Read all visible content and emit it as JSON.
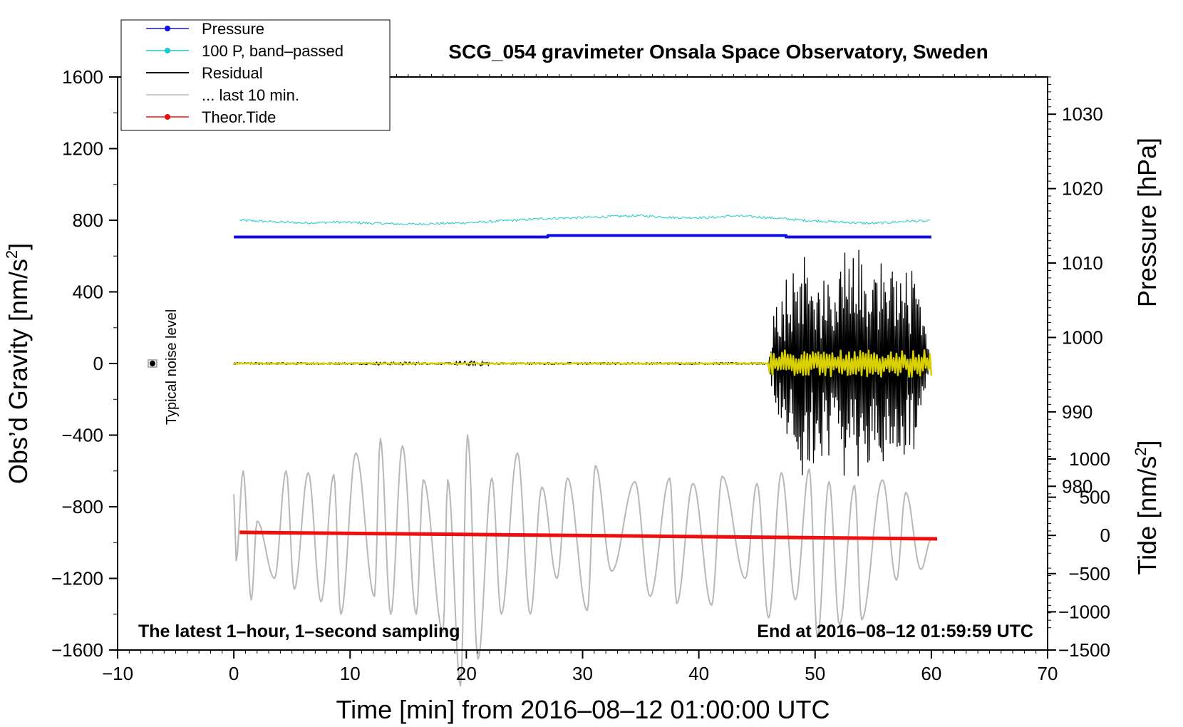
{
  "chart_data": {
    "type": "line",
    "title": "SCG_054 gravimeter Onsala Space Observatory, Sweden",
    "xlabel": "Time [min] from 2016–08–12 01:00:00 UTC",
    "ylabel_left_main": "Obs’d Gravity [nm/s",
    "ylabel_left_sup": "2",
    "ylabel_left_end": "]",
    "ylabel_right_pressure": "Pressure [hPa]",
    "ylabel_right_tide_main": "Tide [nm/s",
    "ylabel_right_tide_sup": "2",
    "ylabel_right_tide_end": "]",
    "xlim": [
      -10,
      70
    ],
    "ylim_left": [
      -1600,
      1600
    ],
    "ylim_pressure": [
      958,
      1035
    ],
    "ylim_tide": [
      -1500,
      1500
    ],
    "x_ticks": [
      "−10",
      "0",
      "10",
      "20",
      "30",
      "40",
      "50",
      "60",
      "70"
    ],
    "y_ticks_left": [
      "1600",
      "1200",
      "800",
      "400",
      "0",
      "−400",
      "−800",
      "−1200",
      "−1600"
    ],
    "y_ticks_pressure": [
      "1030",
      "1020",
      "1010",
      "1000",
      "990",
      "980"
    ],
    "y_ticks_tide": [
      "1000",
      "500",
      "0",
      "−500",
      "−1000",
      "−1500"
    ],
    "legend": [
      {
        "label": "Pressure",
        "color": "#1010e0",
        "marker": true
      },
      {
        "label": "100 P, band–passed",
        "color": "#20c8c8",
        "marker": true
      },
      {
        "label": "Residual",
        "color": "#000000",
        "marker": false
      },
      {
        "label": "... last 10 min.",
        "color": "#b8b8b8",
        "marker": false
      },
      {
        "label": "Theor.Tide",
        "color": "#ee1010",
        "marker": true
      }
    ],
    "annotations": {
      "bottom_left": "The latest 1–hour, 1–second sampling",
      "bottom_right": "End at 2016–08–12 01:59:59 UTC",
      "noise_label": "Typical noise level"
    },
    "noise_marker": {
      "x": -7,
      "y": 0,
      "err": 20
    },
    "series": [
      {
        "name": "Pressure",
        "axis": "pressure",
        "color": "#1010e0",
        "x": [
          0,
          27,
          27.01,
          47.5,
          47.51,
          60
        ],
        "y": [
          1013.5,
          1013.5,
          1013.7,
          1013.7,
          1013.5,
          1013.5
        ]
      },
      {
        "name": "100 P, band-passed",
        "axis": "left",
        "color": "#20c8c8",
        "x": [
          0.5,
          3,
          6,
          9,
          12,
          15,
          18,
          21,
          24,
          27,
          30,
          33,
          35,
          38,
          41,
          43,
          46,
          49,
          52,
          55,
          58,
          60
        ],
        "y": [
          800,
          792,
          785,
          790,
          783,
          778,
          782,
          788,
          800,
          810,
          815,
          822,
          825,
          815,
          815,
          825,
          815,
          800,
          790,
          782,
          795,
          795
        ]
      },
      {
        "name": "Theor.Tide",
        "axis": "tide",
        "color": "#ee1010",
        "x": [
          0.5,
          60.5
        ],
        "y": [
          40,
          -45
        ]
      },
      {
        "name": "Residual",
        "axis": "left",
        "color": "#000000",
        "x": [
          0,
          46,
          46.5,
          48.5,
          51,
          53.1,
          55,
          57,
          58.5,
          60
        ],
        "y": [
          0,
          0,
          300,
          650,
          500,
          -680,
          560,
          560,
          520,
          0
        ]
      },
      {
        "name": "... last 10 min.",
        "axis": "left",
        "color": "#b8b8b8",
        "x": [
          0,
          0.2,
          0.8,
          1.5,
          2,
          3.5,
          4.5,
          5.2,
          6.4,
          7.5,
          8.6,
          9.2,
          10.5,
          12.1,
          12.6,
          13.5,
          14.5,
          15.7,
          16.3,
          18,
          18.4,
          19.5,
          20.1,
          21,
          22.2,
          23,
          24.4,
          25.5,
          26.5,
          27.8,
          28.7,
          30.4,
          31.1,
          32.5,
          34.5,
          35.8,
          37.5,
          38.1,
          39.5,
          41.1,
          42,
          44,
          45,
          46,
          47.1,
          48.3,
          49.5,
          50.2,
          51.2,
          52.1,
          53.4,
          54,
          55.8,
          57,
          57.8,
          59.1,
          60
        ],
        "y": [
          -730,
          -1100,
          -600,
          -1320,
          -880,
          -1200,
          -600,
          -1260,
          -610,
          -1330,
          -620,
          -1400,
          -500,
          -1300,
          -420,
          -1400,
          -460,
          -1400,
          -650,
          -1500,
          -650,
          -1800,
          -400,
          -1650,
          -640,
          -1400,
          -500,
          -1400,
          -690,
          -1200,
          -640,
          -1380,
          -570,
          -1160,
          -660,
          -1300,
          -640,
          -1340,
          -670,
          -1350,
          -630,
          -1200,
          -670,
          -1420,
          -610,
          -1320,
          -590,
          -1530,
          -660,
          -1460,
          -680,
          -1430,
          -650,
          -1210,
          -720,
          -1150,
          -980
        ]
      }
    ]
  }
}
